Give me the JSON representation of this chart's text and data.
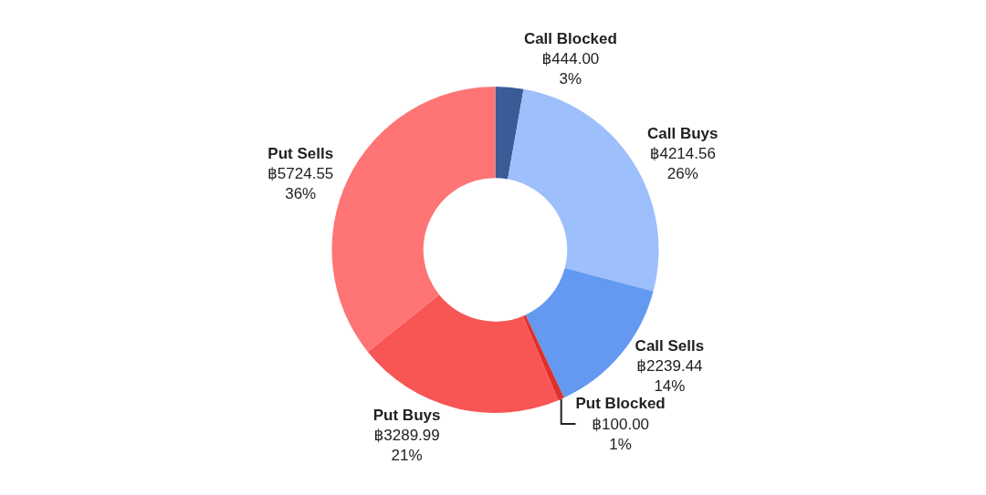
{
  "chart_data": {
    "type": "donut",
    "categories": [
      "Call Blocked",
      "Call Buys",
      "Call Sells",
      "Put Blocked",
      "Put Buys",
      "Put Sells"
    ],
    "values": [
      444.0,
      4214.56,
      2239.44,
      100.0,
      3289.99,
      5724.55
    ],
    "colors": [
      "#3b5b96",
      "#9dbffb",
      "#6399f1",
      "#e0302c",
      "#f85555",
      "#ff7474"
    ],
    "value_labels": [
      "฿444.00\n3%",
      "฿4214.56\n26%",
      "฿2239.44\n14%",
      "฿100.00\n1%",
      "฿3289.99\n21%",
      "฿5724.55\n36%"
    ]
  }
}
